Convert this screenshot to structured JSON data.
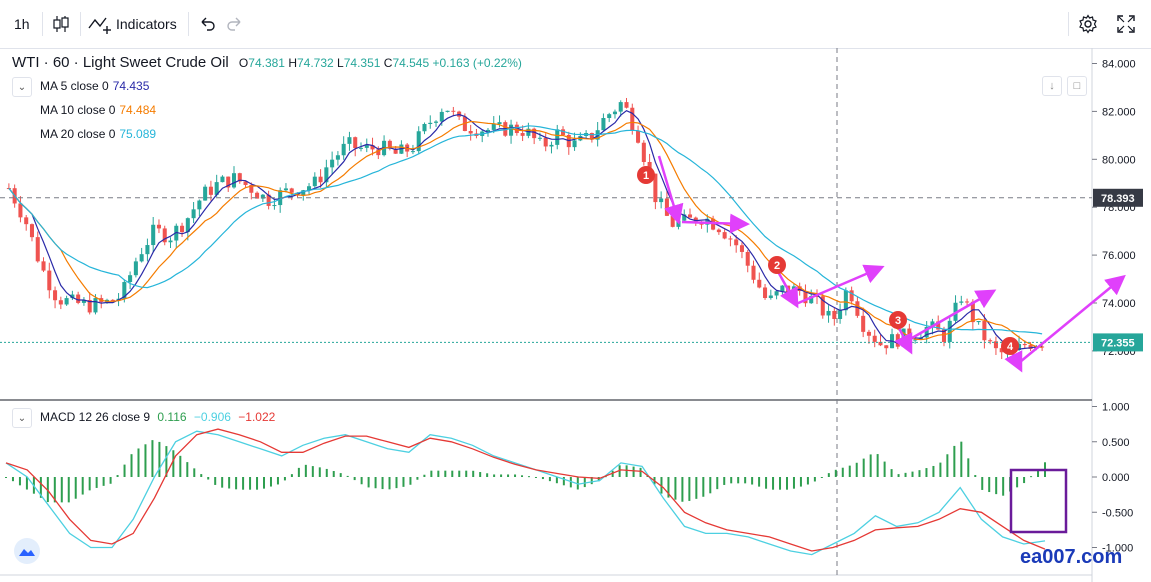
{
  "toolbar": {
    "interval": "1h",
    "indicators_label": "Indicators"
  },
  "legend": {
    "symbol": "WTI · 60 · Light Sweet Crude Oil",
    "o_key": "O",
    "o": "74.381",
    "h_key": "H",
    "h": "74.732",
    "l_key": "L",
    "l": "74.351",
    "c_key": "C",
    "c": "74.545",
    "change": "+0.163 (+0.22%)"
  },
  "ma": [
    {
      "label": "MA 5 close 0",
      "value": "74.435",
      "color": "#2a2aa8"
    },
    {
      "label": "MA 10 close 0",
      "value": "74.484",
      "color": "#f57c00"
    },
    {
      "label": "MA 20 close 0",
      "value": "75.089",
      "color": "#26b5d9"
    }
  ],
  "macd_legend": {
    "label": "MACD 12 26 close 9",
    "hist": "0.116",
    "macd": "−0.906",
    "signal": "−1.022"
  },
  "price_labels": {
    "crosshair": "78.393",
    "last": "72.355"
  },
  "markers": [
    "1",
    "2",
    "3",
    "4"
  ],
  "watermark": "ea007.com",
  "colors": {
    "up": "#26a69a",
    "down": "#ef5350",
    "macd_line": "#4dd0e1",
    "signal_line": "#e53935",
    "hist": "#2e9e4f",
    "arrow": "#e040fb",
    "box": "#6a1b9a",
    "last_price": "#26a69a"
  },
  "chart_data": [
    {
      "type": "candlestick",
      "title": "WTI · 60 · Light Sweet Crude Oil",
      "ylim": [
        71.0,
        85.0
      ],
      "yticks": [
        84.0,
        82.0,
        80.0,
        78.0,
        76.0,
        74.0,
        72.0
      ],
      "ytick_labels": [
        "84.000",
        "82.000",
        "80.000",
        "78.000",
        "76.000",
        "74.000",
        "72.000"
      ],
      "close_path": [
        78.8,
        77.5,
        75.5,
        74.2,
        74.0,
        73.9,
        74.0,
        74.3,
        76.0,
        77.0,
        76.8,
        77.5,
        78.5,
        79.0,
        79.2,
        78.8,
        78.3,
        78.6,
        78.8,
        79.0,
        80.0,
        80.6,
        80.4,
        80.5,
        80.2,
        80.5,
        81.5,
        82.3,
        81.4,
        81.3,
        81.2,
        81.3,
        81.2,
        80.5,
        81.1,
        80.6,
        80.9,
        81.8,
        82.4,
        81.0,
        78.5,
        77.3,
        77.4,
        77.6,
        77.2,
        76.5,
        75.3,
        74.0,
        74.6,
        74.5,
        74.0,
        73.2,
        74.7,
        73.0,
        72.3,
        72.5,
        72.7,
        73.0,
        72.6,
        74.3,
        73.0,
        72.0,
        71.8,
        72.3,
        72.4
      ],
      "series": [
        {
          "name": "MA 5 close 0",
          "last": 74.435
        },
        {
          "name": "MA 10 close 0",
          "last": 74.484
        },
        {
          "name": "MA 20 close 0",
          "last": 75.089
        }
      ],
      "annotations": [
        "1",
        "2",
        "3",
        "4"
      ],
      "horizontal_lines": [
        78.393,
        72.355
      ]
    },
    {
      "type": "bar",
      "title": "MACD 12 26 close 9",
      "ylim": [
        -1.1,
        1.1
      ],
      "yticks": [
        1.0,
        0.5,
        0.0,
        -0.5,
        -1.0
      ],
      "ytick_labels": [
        "1.000",
        "0.500",
        "0.000",
        "-0.500",
        "-1.000"
      ],
      "macd_path": [
        0.2,
        0.0,
        -0.4,
        -0.8,
        -1.0,
        -1.0,
        -0.6,
        0.0,
        0.5,
        0.65,
        0.6,
        0.5,
        0.4,
        0.3,
        0.45,
        0.55,
        0.6,
        0.5,
        0.4,
        0.35,
        0.6,
        0.55,
        0.45,
        0.3,
        0.2,
        0.1,
        0.0,
        -0.1,
        -0.05,
        0.2,
        0.15,
        -0.3,
        -0.7,
        -0.8,
        -0.8,
        -0.85,
        -0.95,
        -1.05,
        -1.1,
        -0.95,
        -0.8,
        -0.55,
        -0.7,
        -0.65,
        -0.5,
        -0.15,
        -0.6,
        -0.85,
        -0.95,
        -0.906
      ],
      "signal_path": [
        0.2,
        0.1,
        -0.2,
        -0.6,
        -0.9,
        -0.95,
        -0.8,
        -0.3,
        0.3,
        0.6,
        0.68,
        0.6,
        0.5,
        0.35,
        0.35,
        0.48,
        0.58,
        0.58,
        0.5,
        0.42,
        0.55,
        0.5,
        0.4,
        0.28,
        0.18,
        0.1,
        0.05,
        0.0,
        -0.02,
        0.1,
        0.08,
        -0.15,
        -0.5,
        -0.65,
        -0.75,
        -0.8,
        -0.85,
        -0.95,
        -1.05,
        -1.0,
        -0.9,
        -0.75,
        -0.72,
        -0.7,
        -0.6,
        -0.45,
        -0.5,
        -0.7,
        -0.9,
        -1.022
      ],
      "hist_last": 0.116
    }
  ]
}
